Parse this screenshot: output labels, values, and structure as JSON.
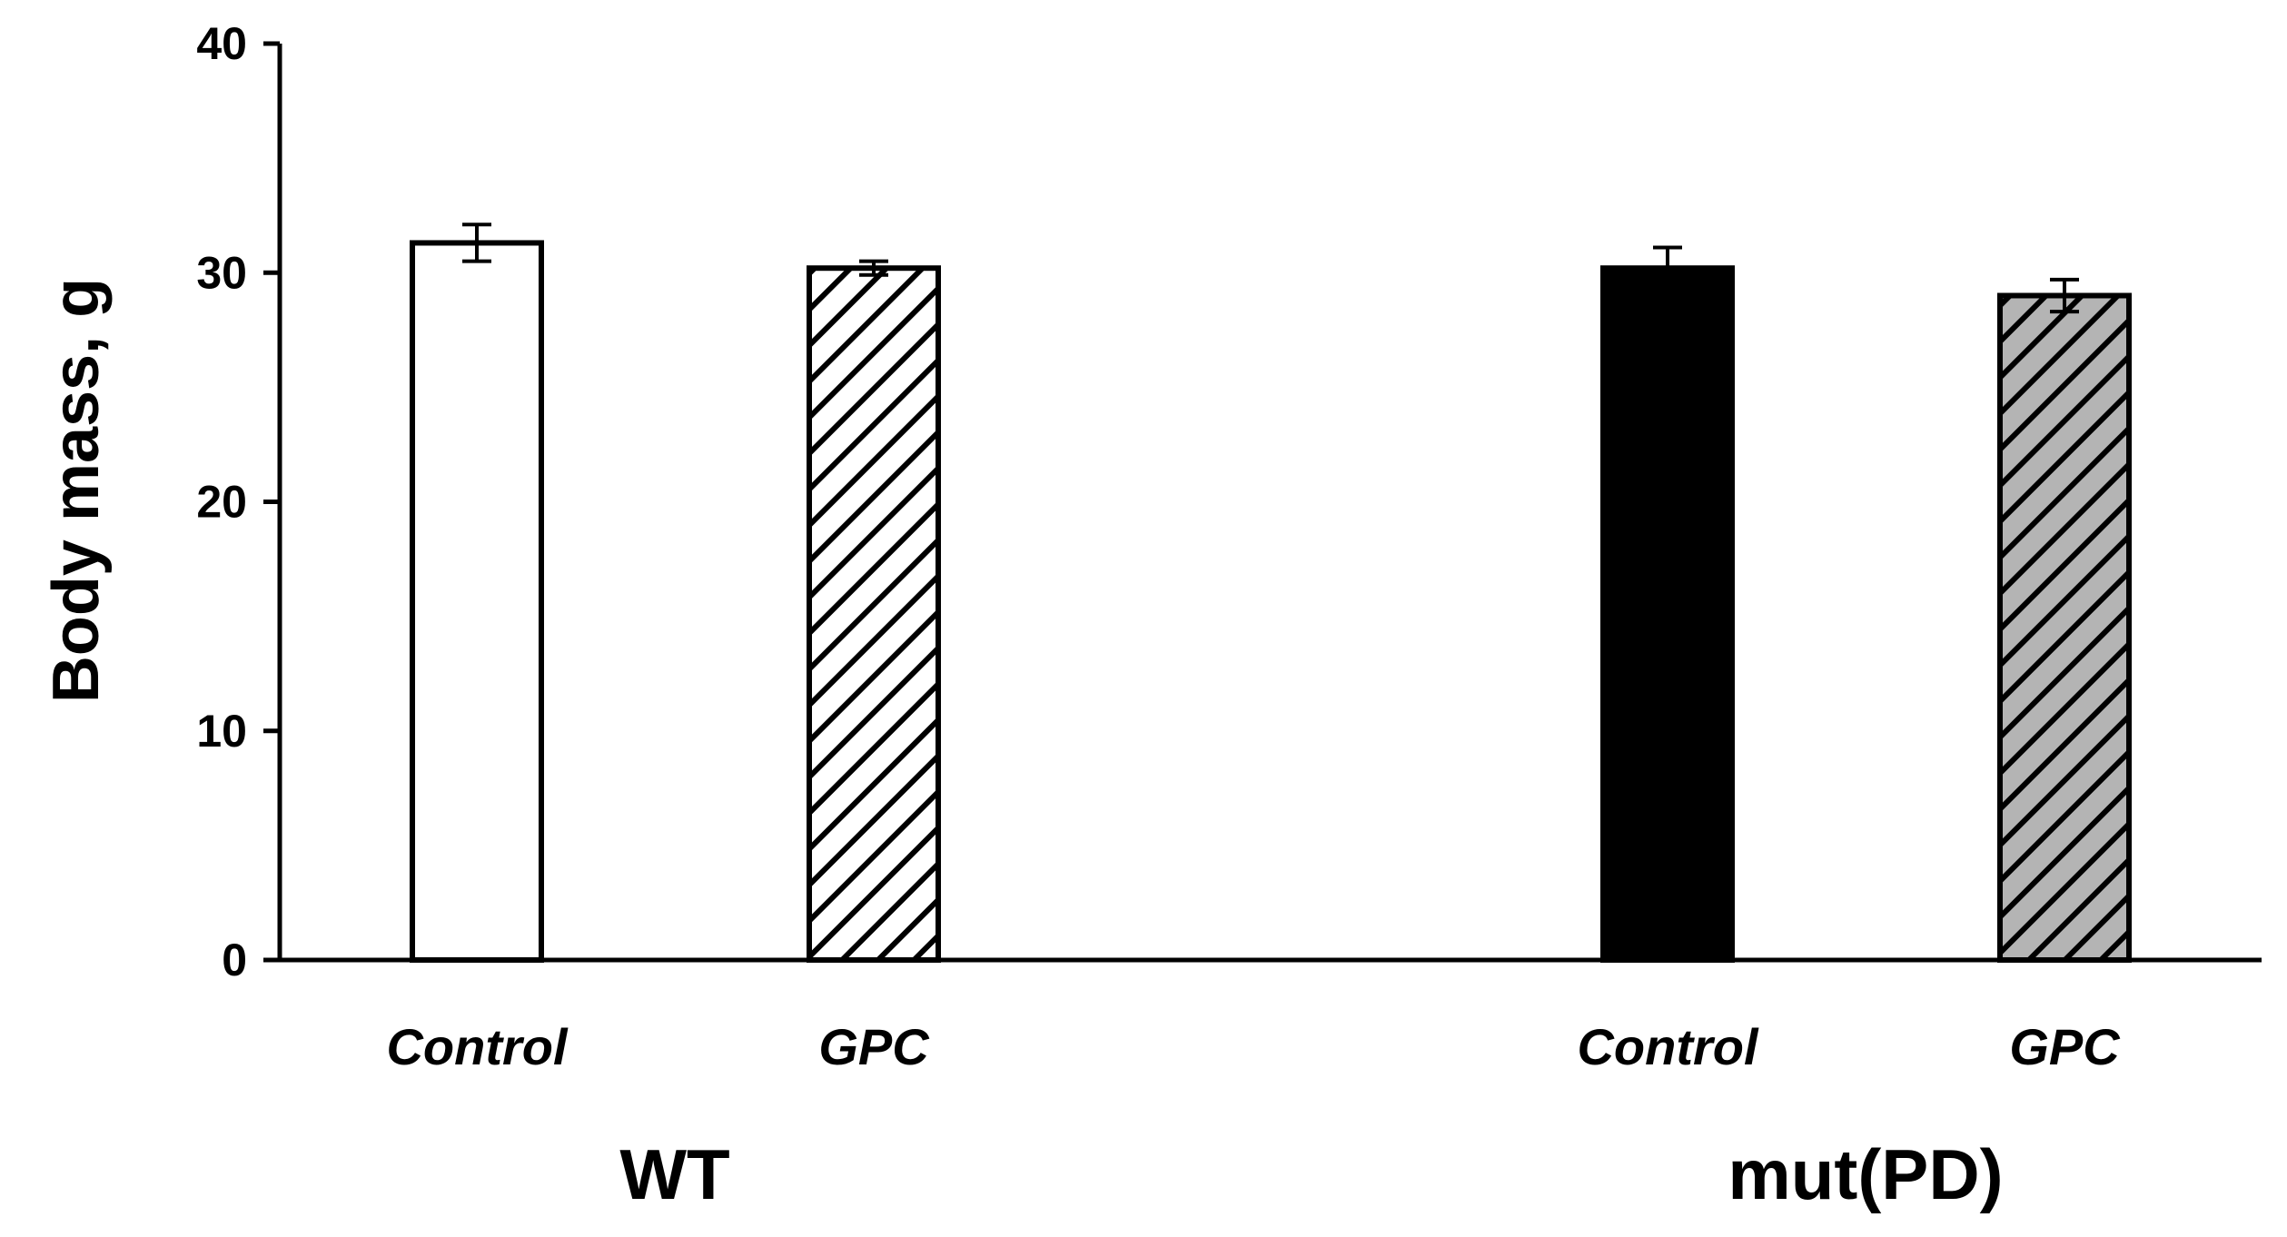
{
  "chart_data": {
    "type": "bar",
    "title": "",
    "xlabel": "",
    "ylabel": "Body mass, g",
    "ylim": [
      0,
      40
    ],
    "yticks": [
      "0",
      "10",
      "20",
      "30",
      "40"
    ],
    "grid": false,
    "legend": "none",
    "groups": [
      {
        "label": "WT",
        "categories": [
          "Control",
          "GPC"
        ]
      },
      {
        "label": "mut(PD)",
        "categories": [
          "Control",
          "GPC"
        ]
      }
    ],
    "bars": [
      {
        "group": "WT",
        "category": "Control",
        "value": 31.3,
        "error": 0.8,
        "fill": "white"
      },
      {
        "group": "WT",
        "category": "GPC",
        "value": 30.2,
        "error": 0.3,
        "fill": "black-hatch"
      },
      {
        "group": "mut(PD)",
        "category": "Control",
        "value": 30.2,
        "error": 0.9,
        "fill": "black"
      },
      {
        "group": "mut(PD)",
        "category": "GPC",
        "value": 29.0,
        "error": 0.7,
        "fill": "gray-hatch"
      }
    ]
  },
  "colors": {
    "axis": "#000000",
    "bar_outline": "#000000",
    "white_fill": "#ffffff",
    "black_fill": "#000000",
    "gray_fill": "#b4b4b4",
    "hatch_line": "#000000"
  }
}
